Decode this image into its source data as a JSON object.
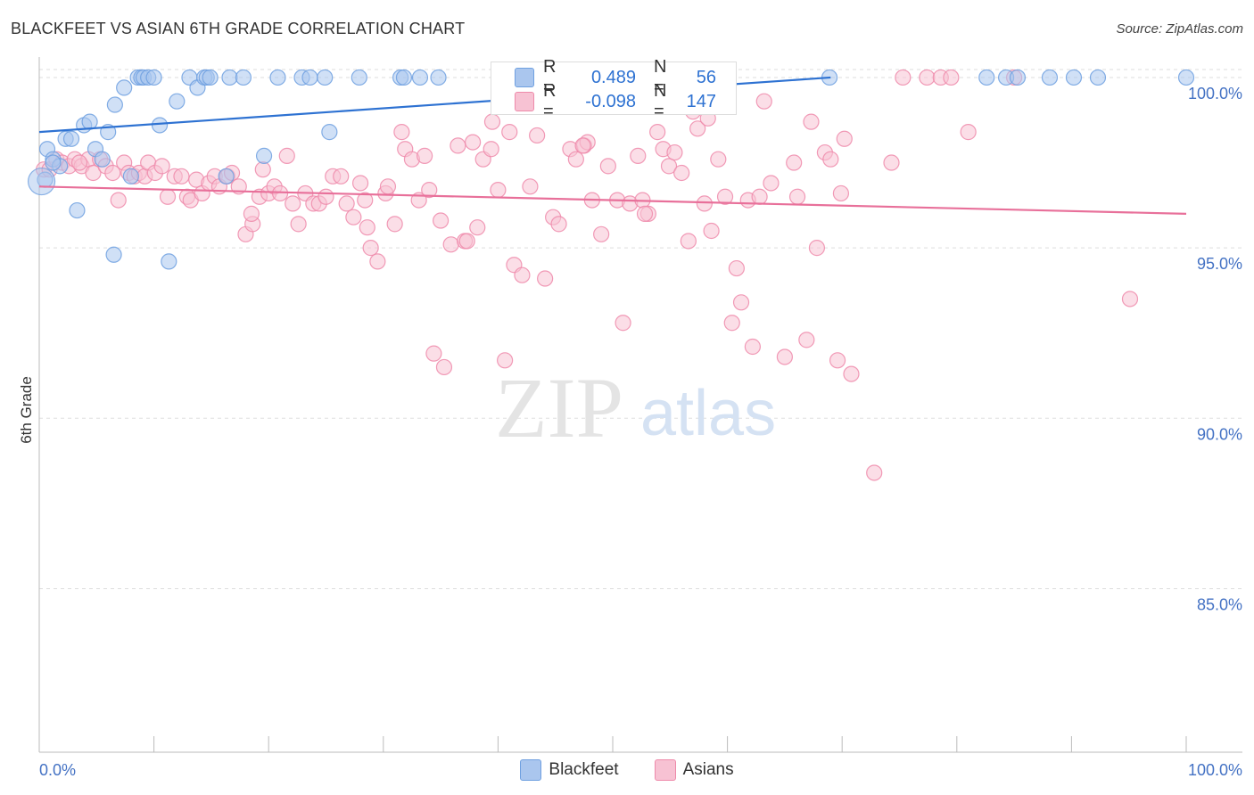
{
  "header": {
    "title": "BLACKFEET VS ASIAN 6TH GRADE CORRELATION CHART",
    "source": "Source: ZipAtlas.com"
  },
  "watermark": {
    "zip": "ZIP",
    "atlas": "atlas"
  },
  "stats": [
    {
      "r_label": "R =",
      "r_value": "0.489",
      "n_label": "N =",
      "n_value": "56",
      "color": "#6fa0e0"
    },
    {
      "r_label": "R =",
      "r_value": "-0.098",
      "n_label": "N =",
      "n_value": "147",
      "color": "#f49ab8"
    }
  ],
  "legend": [
    {
      "label": "Blackfeet",
      "color": "#aac6ee"
    },
    {
      "label": "Asians",
      "color": "#f7c2d3"
    }
  ],
  "colors": {
    "blackfeet_fill": "#aac6ee",
    "blackfeet_stroke": "#6fa0e0",
    "blackfeet_line": "#2e72d2",
    "asians_fill": "#f7c2d3",
    "asians_stroke": "#ee8aaa",
    "asians_line": "#e8709a",
    "axis_text": "#4472c4",
    "grid": "#dddddd"
  },
  "chart_data": {
    "type": "scatter",
    "title": "BLACKFEET VS ASIAN 6TH GRADE CORRELATION CHART",
    "ylabel": "6th Grade",
    "xlabel": "",
    "xlim": [
      0,
      100
    ],
    "ylim": [
      80.2,
      100.6
    ],
    "x_tick_labels": [
      "0.0%",
      "100.0%"
    ],
    "y_ticks": [
      {
        "value": 100,
        "label": "100.0%"
      },
      {
        "value": 95,
        "label": "95.0%"
      },
      {
        "value": 90,
        "label": "90.0%"
      },
      {
        "value": 85,
        "label": "85.0%"
      }
    ],
    "grid": true,
    "series": [
      {
        "name": "Blackfeet",
        "trend": {
          "x": [
            0,
            69
          ],
          "y": [
            98.4,
            100.0
          ]
        },
        "points": [
          [
            0.7,
            97.9
          ],
          [
            1.2,
            97.6
          ],
          [
            1.8,
            97.4
          ],
          [
            2.3,
            98.2
          ],
          [
            2.8,
            98.2
          ],
          [
            3.3,
            96.1
          ],
          [
            3.9,
            98.6
          ],
          [
            4.4,
            98.7
          ],
          [
            4.9,
            97.9
          ],
          [
            5.5,
            97.6
          ],
          [
            6.0,
            98.4
          ],
          [
            6.6,
            99.2
          ],
          [
            7.4,
            99.7
          ],
          [
            8.0,
            97.1
          ],
          [
            8.6,
            100
          ],
          [
            8.9,
            100
          ],
          [
            9.1,
            100
          ],
          [
            9.5,
            100
          ],
          [
            10.0,
            100
          ],
          [
            10.5,
            98.6
          ],
          [
            12.0,
            99.3
          ],
          [
            13.1,
            100
          ],
          [
            13.8,
            99.7
          ],
          [
            14.4,
            100
          ],
          [
            14.6,
            100
          ],
          [
            14.9,
            100
          ],
          [
            16.3,
            97.1
          ],
          [
            16.6,
            100
          ],
          [
            17.8,
            100
          ],
          [
            19.6,
            97.7
          ],
          [
            20.8,
            100
          ],
          [
            22.9,
            100
          ],
          [
            23.6,
            100
          ],
          [
            24.9,
            100
          ],
          [
            25.3,
            98.4
          ],
          [
            27.9,
            100
          ],
          [
            31.5,
            100
          ],
          [
            31.8,
            100
          ],
          [
            33.2,
            100
          ],
          [
            34.8,
            100
          ],
          [
            40.5,
            100
          ],
          [
            42.8,
            100
          ],
          [
            48.6,
            100
          ],
          [
            50.1,
            100
          ],
          [
            68.9,
            100
          ],
          [
            82.6,
            100
          ],
          [
            84.3,
            100
          ],
          [
            85.3,
            100
          ],
          [
            88.1,
            100
          ],
          [
            90.2,
            100
          ],
          [
            92.3,
            100
          ],
          [
            100,
            100
          ],
          [
            6.5,
            94.8
          ],
          [
            11.3,
            94.6
          ],
          [
            1.2,
            97.5
          ],
          [
            0.5,
            97.0
          ]
        ]
      },
      {
        "name": "Asians",
        "trend": {
          "x": [
            0,
            100
          ],
          "y": [
            96.8,
            96.0
          ]
        },
        "points": [
          [
            0.4,
            97.3
          ],
          [
            0.9,
            97.3
          ],
          [
            1.5,
            97.6
          ],
          [
            2.0,
            97.5
          ],
          [
            2.6,
            97.4
          ],
          [
            3.1,
            97.6
          ],
          [
            3.7,
            97.4
          ],
          [
            4.3,
            97.6
          ],
          [
            4.7,
            97.2
          ],
          [
            5.3,
            97.6
          ],
          [
            5.8,
            97.4
          ],
          [
            6.4,
            97.2
          ],
          [
            6.9,
            96.4
          ],
          [
            7.4,
            97.5
          ],
          [
            7.8,
            97.2
          ],
          [
            8.3,
            97.1
          ],
          [
            8.7,
            97.2
          ],
          [
            9.2,
            97.1
          ],
          [
            9.5,
            97.5
          ],
          [
            10.1,
            97.2
          ],
          [
            10.7,
            97.4
          ],
          [
            11.2,
            96.5
          ],
          [
            11.8,
            97.1
          ],
          [
            12.4,
            97.1
          ],
          [
            12.9,
            96.5
          ],
          [
            13.2,
            96.4
          ],
          [
            13.7,
            97.0
          ],
          [
            14.2,
            96.6
          ],
          [
            14.8,
            96.9
          ],
          [
            15.3,
            97.1
          ],
          [
            15.7,
            96.8
          ],
          [
            16.4,
            97.1
          ],
          [
            16.8,
            97.2
          ],
          [
            17.4,
            96.8
          ],
          [
            18.0,
            95.4
          ],
          [
            18.6,
            95.7
          ],
          [
            19.2,
            96.5
          ],
          [
            19.5,
            97.3
          ],
          [
            20.0,
            96.6
          ],
          [
            20.5,
            96.8
          ],
          [
            21.0,
            96.6
          ],
          [
            21.6,
            97.7
          ],
          [
            22.1,
            96.3
          ],
          [
            22.6,
            95.7
          ],
          [
            23.2,
            96.6
          ],
          [
            23.9,
            96.3
          ],
          [
            24.4,
            96.3
          ],
          [
            25.0,
            96.5
          ],
          [
            25.6,
            97.1
          ],
          [
            26.3,
            97.1
          ],
          [
            26.8,
            96.3
          ],
          [
            27.4,
            95.9
          ],
          [
            28.0,
            96.9
          ],
          [
            28.6,
            95.6
          ],
          [
            28.9,
            95.0
          ],
          [
            29.5,
            94.6
          ],
          [
            30.2,
            96.6
          ],
          [
            30.4,
            96.8
          ],
          [
            31.0,
            95.7
          ],
          [
            31.6,
            98.4
          ],
          [
            31.9,
            97.9
          ],
          [
            32.5,
            97.6
          ],
          [
            33.1,
            96.4
          ],
          [
            33.6,
            97.7
          ],
          [
            34.0,
            96.7
          ],
          [
            34.4,
            91.9
          ],
          [
            35.0,
            95.8
          ],
          [
            35.3,
            91.5
          ],
          [
            35.9,
            95.1
          ],
          [
            36.5,
            98.0
          ],
          [
            37.1,
            95.2
          ],
          [
            37.3,
            95.2
          ],
          [
            37.8,
            98.1
          ],
          [
            38.2,
            95.6
          ],
          [
            38.7,
            97.6
          ],
          [
            39.4,
            97.9
          ],
          [
            40.0,
            96.7
          ],
          [
            40.6,
            91.7
          ],
          [
            41.0,
            98.4
          ],
          [
            41.4,
            94.5
          ],
          [
            42.1,
            94.2
          ],
          [
            42.8,
            96.8
          ],
          [
            43.4,
            98.3
          ],
          [
            44.1,
            94.1
          ],
          [
            44.8,
            95.9
          ],
          [
            45.3,
            95.7
          ],
          [
            46.3,
            97.9
          ],
          [
            46.8,
            97.6
          ],
          [
            47.5,
            98.0
          ],
          [
            47.8,
            98.1
          ],
          [
            48.2,
            96.4
          ],
          [
            49.0,
            95.4
          ],
          [
            49.6,
            97.4
          ],
          [
            50.4,
            96.4
          ],
          [
            50.9,
            92.8
          ],
          [
            51.5,
            96.3
          ],
          [
            52.2,
            97.7
          ],
          [
            52.6,
            96.4
          ],
          [
            53.1,
            96.0
          ],
          [
            53.9,
            98.4
          ],
          [
            54.4,
            97.9
          ],
          [
            54.9,
            97.4
          ],
          [
            55.4,
            97.8
          ],
          [
            56.0,
            97.2
          ],
          [
            56.6,
            95.2
          ],
          [
            57.0,
            99.0
          ],
          [
            57.4,
            98.5
          ],
          [
            58.0,
            96.3
          ],
          [
            58.6,
            95.5
          ],
          [
            59.2,
            97.6
          ],
          [
            59.8,
            96.5
          ],
          [
            60.4,
            92.8
          ],
          [
            60.8,
            94.4
          ],
          [
            61.2,
            93.4
          ],
          [
            61.8,
            96.4
          ],
          [
            62.2,
            92.1
          ],
          [
            62.8,
            96.5
          ],
          [
            63.2,
            99.3
          ],
          [
            63.8,
            96.9
          ],
          [
            65.0,
            91.8
          ],
          [
            65.8,
            97.5
          ],
          [
            66.1,
            96.5
          ],
          [
            66.9,
            92.3
          ],
          [
            67.3,
            98.7
          ],
          [
            67.8,
            95.0
          ],
          [
            68.5,
            97.8
          ],
          [
            69.0,
            97.6
          ],
          [
            69.6,
            91.7
          ],
          [
            69.9,
            96.6
          ],
          [
            70.2,
            98.2
          ],
          [
            70.8,
            91.3
          ],
          [
            72.8,
            88.4
          ],
          [
            74.3,
            97.5
          ],
          [
            75.3,
            100
          ],
          [
            77.4,
            100
          ],
          [
            78.6,
            100
          ],
          [
            79.5,
            100
          ],
          [
            81.0,
            98.4
          ],
          [
            85.0,
            100
          ],
          [
            95.1,
            93.5
          ],
          [
            47.4,
            98.0
          ],
          [
            52.8,
            96.0
          ],
          [
            58.3,
            98.8
          ],
          [
            18.5,
            96.0
          ],
          [
            28.4,
            96.4
          ],
          [
            3.5,
            97.5
          ],
          [
            39.5,
            98.7
          ]
        ]
      }
    ]
  }
}
